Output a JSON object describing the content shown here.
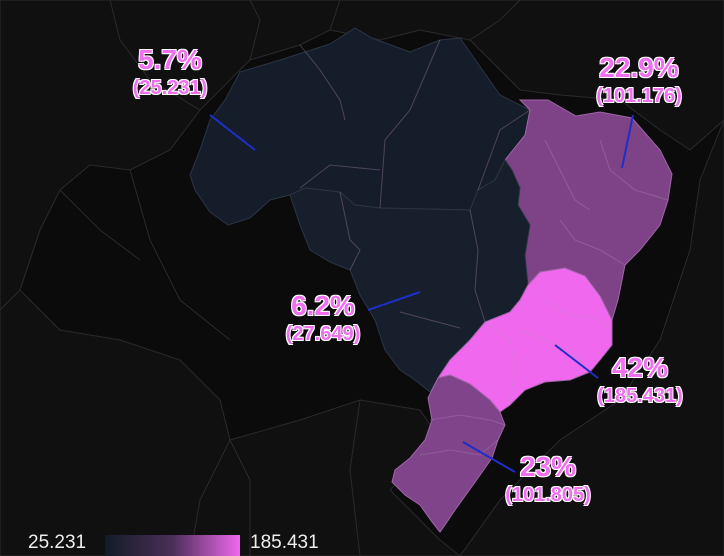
{
  "colors": {
    "background": "#0b0b0c",
    "neighbors": "#101011",
    "neighbor_border": "#2a2a2c",
    "scale_low": "#141b28",
    "scale_high": "#f068ee",
    "label_text": "#f06ef0",
    "label_outline": "#ffffff",
    "leader_line": "#1d2fc8"
  },
  "legend": {
    "min": "25.231",
    "max": "185.431"
  },
  "regions": [
    {
      "id": "norte",
      "percent": "5.7%",
      "value": "(25.231)",
      "amount": 25.231,
      "color": "#161d2a"
    },
    {
      "id": "nordeste",
      "percent": "22.9%",
      "value": "(101.176)",
      "amount": 101.176,
      "color": "#7d4386"
    },
    {
      "id": "centro-oeste",
      "percent": "6.2%",
      "value": "(27.649)",
      "amount": 27.649,
      "color": "#171f2d"
    },
    {
      "id": "sudeste",
      "percent": "42%",
      "value": "(185.431)",
      "amount": 185.431,
      "color": "#f068ee"
    },
    {
      "id": "sul",
      "percent": "23%",
      "value": "(101.805)",
      "amount": 101.805,
      "color": "#7f4489"
    }
  ]
}
